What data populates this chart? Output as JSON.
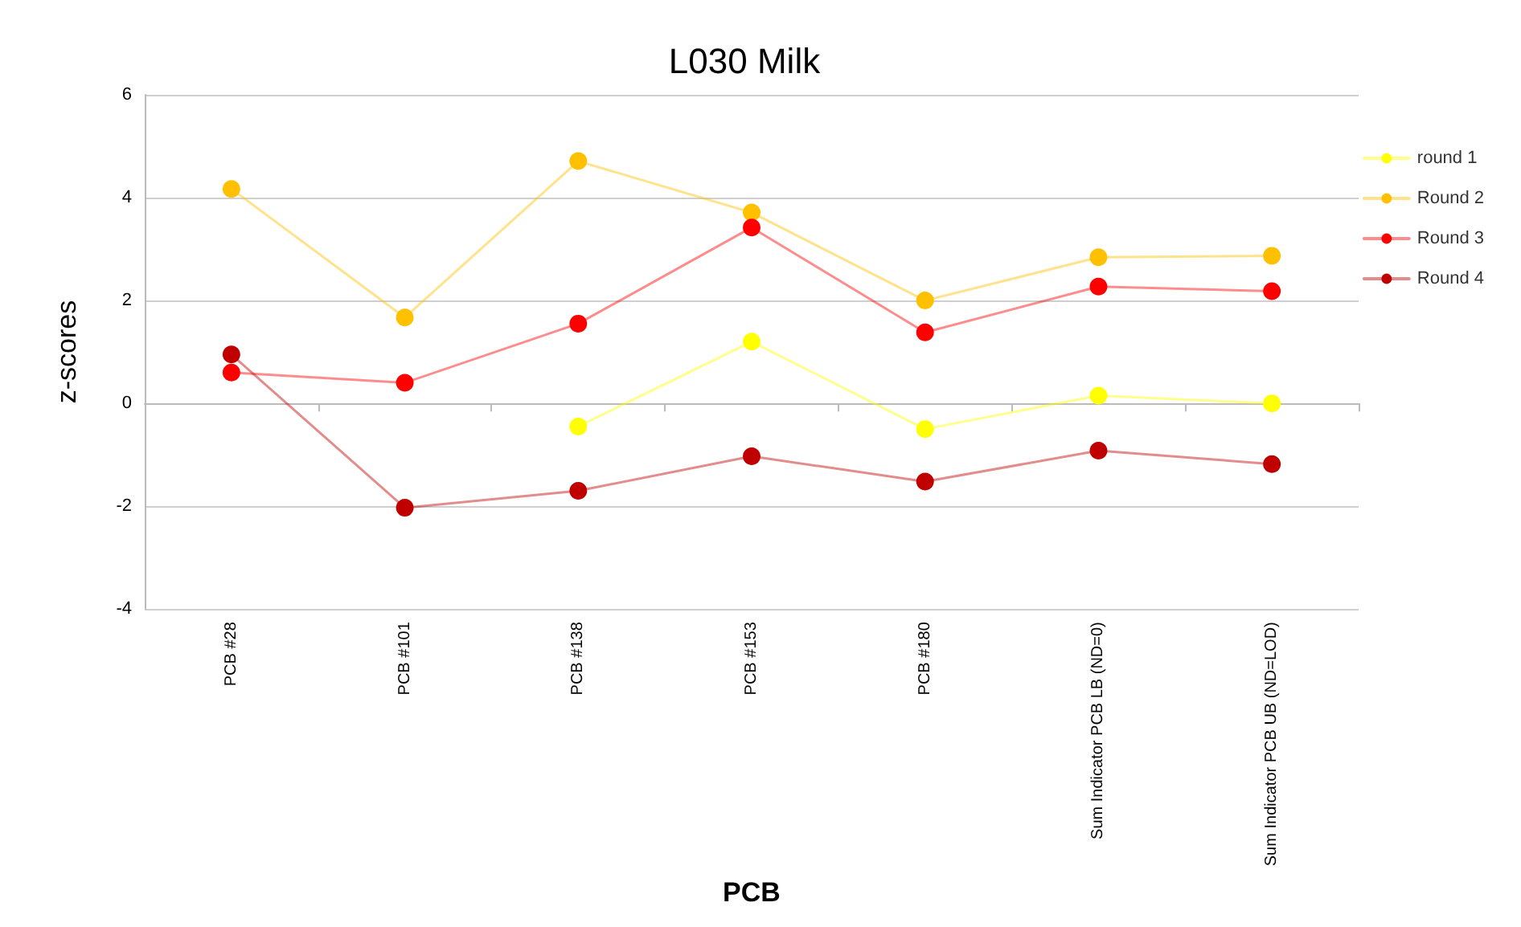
{
  "chart_data": {
    "type": "line",
    "title": "L030 Milk",
    "xlabel": "PCB",
    "ylabel": "z-scores",
    "categories": [
      "PCB #28",
      "PCB #101",
      "PCB #138",
      "PCB #153",
      "PCB #180",
      "Sum Indicator PCB LB (ND=0)",
      "Sum Indicator PCB UB (ND=LOD)"
    ],
    "series": [
      {
        "name": "round 1",
        "color": "#ffff00",
        "values": [
          null,
          null,
          -0.45,
          1.2,
          -0.5,
          0.15,
          0.0
        ]
      },
      {
        "name": "Round 2",
        "color": "#ffc000",
        "values": [
          4.17,
          1.67,
          4.71,
          3.71,
          2.0,
          2.84,
          2.87
        ]
      },
      {
        "name": "Round 3",
        "color": "#ff0000",
        "values": [
          0.6,
          0.4,
          1.55,
          3.42,
          1.38,
          2.27,
          2.18
        ]
      },
      {
        "name": "Round 4",
        "color": "#c00000",
        "values": [
          0.95,
          -2.03,
          -1.7,
          -1.03,
          -1.52,
          -0.92,
          -1.18
        ]
      }
    ],
    "ylim": [
      -4,
      6
    ],
    "yticks": [
      -4,
      -2,
      0,
      2,
      4,
      6
    ],
    "grid": "y",
    "legend": "right",
    "marker": "circle"
  }
}
